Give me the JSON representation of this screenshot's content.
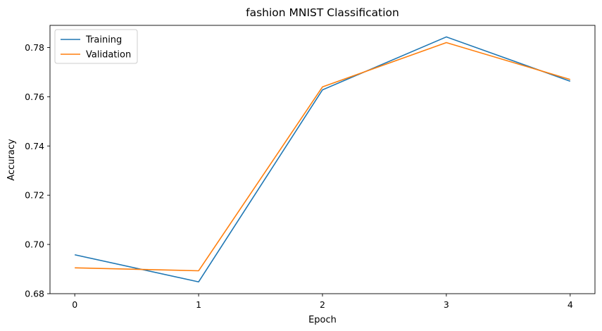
{
  "chart_data": {
    "type": "line",
    "title": "fashion MNIST Classification",
    "xlabel": "Epoch",
    "ylabel": "Accuracy",
    "x": [
      0,
      1,
      2,
      3,
      4
    ],
    "xlim": [
      -0.2,
      4.2
    ],
    "ylim": [
      0.68,
      0.789
    ],
    "xticks": [
      0,
      1,
      2,
      3,
      4
    ],
    "xtick_labels": [
      "0",
      "1",
      "2",
      "3",
      "4"
    ],
    "yticks": [
      0.68,
      0.7,
      0.72,
      0.74,
      0.76,
      0.78
    ],
    "ytick_labels": [
      "0.68",
      "0.70",
      "0.72",
      "0.74",
      "0.76",
      "0.78"
    ],
    "grid": false,
    "legend_position": "upper-left",
    "series": [
      {
        "name": "Training",
        "color": "#1f77b4",
        "values": [
          0.6958,
          0.6848,
          0.7628,
          0.7843,
          0.7663
        ]
      },
      {
        "name": "Validation",
        "color": "#ff7f0e",
        "values": [
          0.6905,
          0.6893,
          0.764,
          0.782,
          0.767
        ]
      }
    ]
  }
}
